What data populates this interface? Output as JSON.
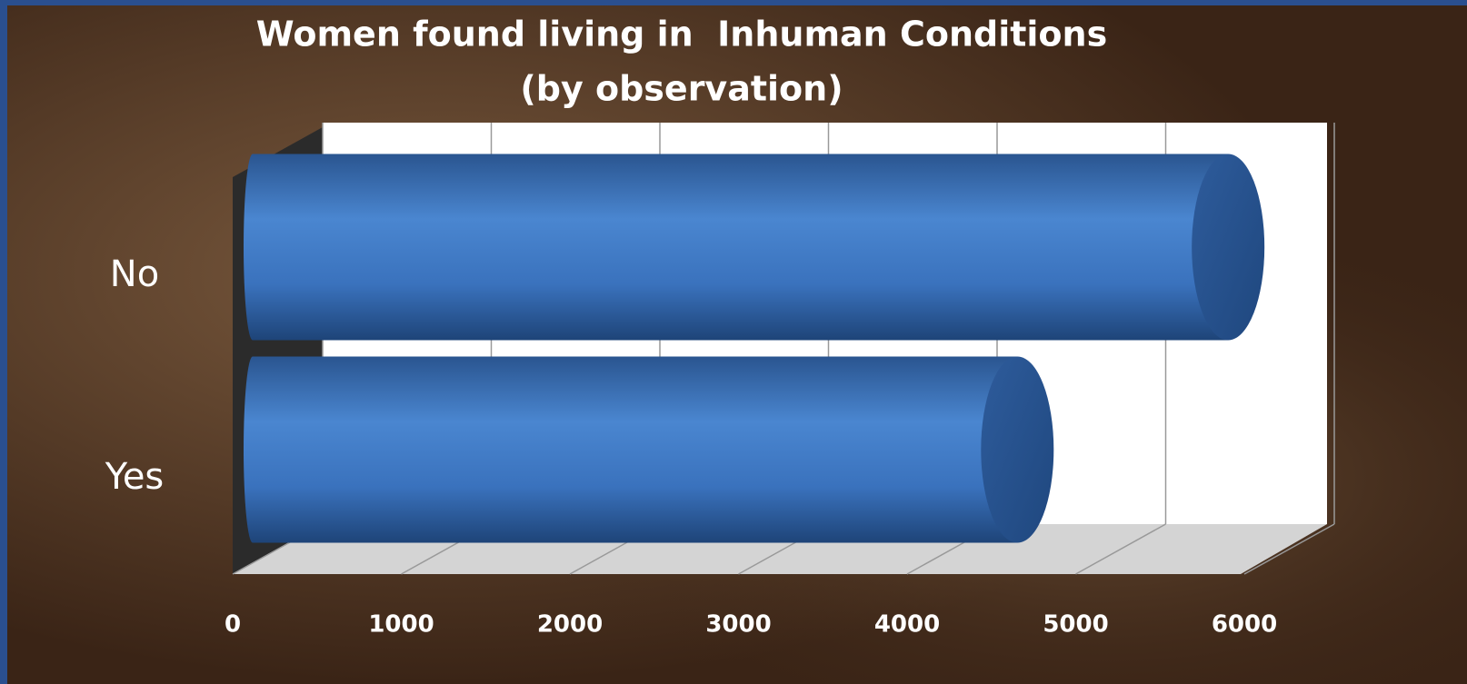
{
  "chart_data": {
    "type": "bar",
    "orientation": "horizontal",
    "title": "Women found living in  Inhuman Conditions",
    "subtitle": "(by observation)",
    "categories": [
      "No",
      "Yes"
    ],
    "values": [
      5850,
      4600
    ],
    "color": "#3a72bd",
    "xlim": [
      0,
      6000
    ],
    "xticks": [
      0,
      1000,
      2000,
      3000,
      4000,
      5000,
      6000
    ],
    "grid": true
  }
}
